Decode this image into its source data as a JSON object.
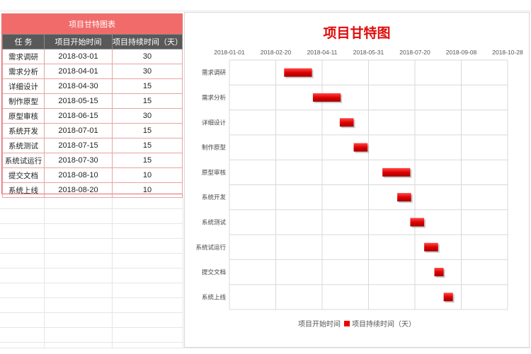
{
  "table": {
    "title": "项目甘特图表",
    "headers": [
      "任 务",
      "项目开始时间",
      "项目持续时间（天）"
    ],
    "rows": [
      [
        "需求调研",
        "2018-03-01",
        "30"
      ],
      [
        "需求分析",
        "2018-04-01",
        "30"
      ],
      [
        "详细设计",
        "2018-04-30",
        "15"
      ],
      [
        "制作原型",
        "2018-05-15",
        "15"
      ],
      [
        "原型审核",
        "2018-06-15",
        "30"
      ],
      [
        "系统开发",
        "2018-07-01",
        "15"
      ],
      [
        "系统测试",
        "2018-07-15",
        "15"
      ],
      [
        "系统试运行",
        "2018-07-30",
        "15"
      ],
      [
        "提交文档",
        "2018-08-10",
        "10"
      ],
      [
        "系统上线",
        "2018-08-20",
        "10"
      ]
    ]
  },
  "chart_data": {
    "type": "bar",
    "orientation": "horizontal-stacked-gantt",
    "title": "项目甘特图",
    "categories": [
      "需求调研",
      "需求分析",
      "详细设计",
      "制作原型",
      "原型审核",
      "系统开发",
      "系统测试",
      "系统试运行",
      "提交文档",
      "系统上线"
    ],
    "series": [
      {
        "name": "项目开始时间",
        "values": [
          "2018-03-01",
          "2018-04-01",
          "2018-04-30",
          "2018-05-15",
          "2018-06-15",
          "2018-07-01",
          "2018-07-15",
          "2018-07-30",
          "2018-08-10",
          "2018-08-20"
        ],
        "visible": false
      },
      {
        "name": "项目持续时间（天）",
        "values": [
          30,
          30,
          15,
          15,
          30,
          15,
          15,
          15,
          10,
          10
        ],
        "color": "#e00000"
      }
    ],
    "xaxis": {
      "position": "top",
      "ticks": [
        "2018-01-01",
        "2018-02-20",
        "2018-04-11",
        "2018-05-31",
        "2018-07-20",
        "2018-09-08",
        "2018-10-28"
      ],
      "range": [
        "2018-01-01",
        "2018-10-28"
      ]
    },
    "grid": true,
    "legend": "bottom"
  }
}
